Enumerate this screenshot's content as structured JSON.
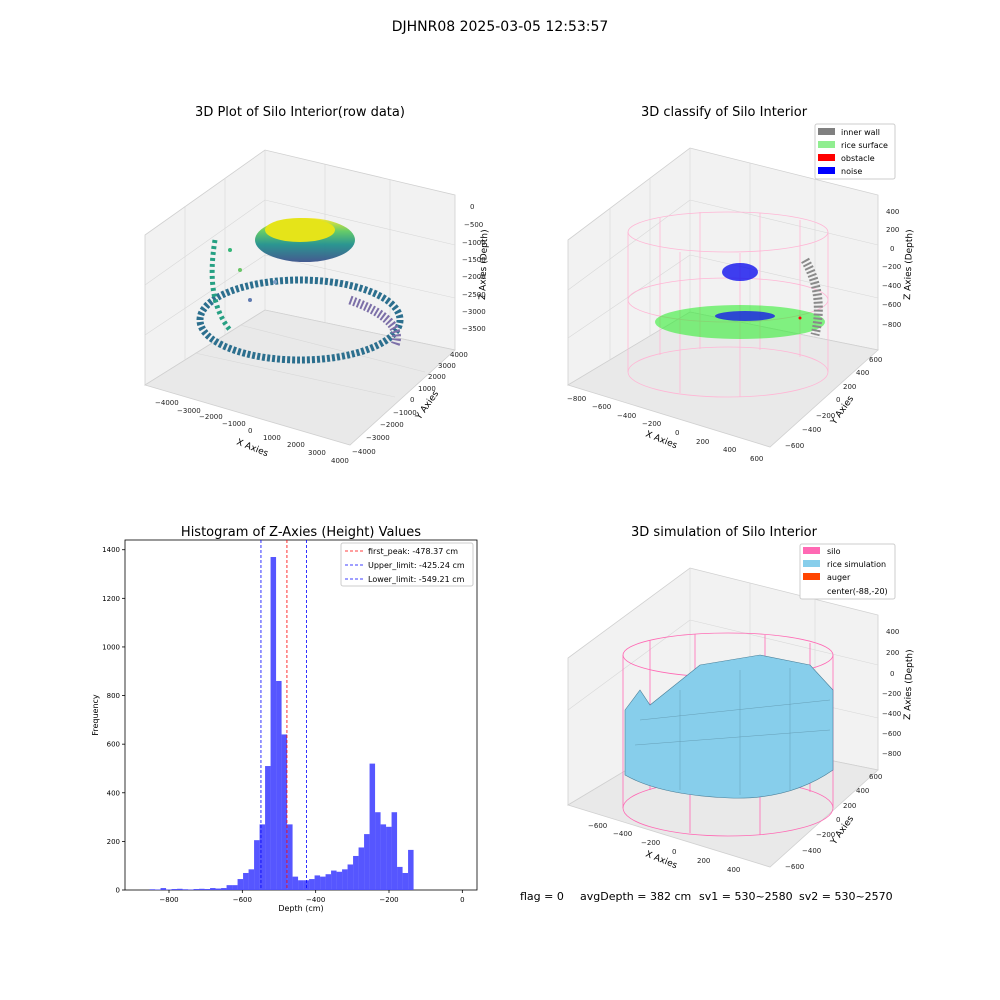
{
  "figure": {
    "suptitle": "DJHNR08 2025-03-05 12:53:57",
    "footer": {
      "flag": "flag = 0",
      "avg_depth": "avgDepth = 382 cm",
      "sv1": "sv1 = 530~2580",
      "sv2": "sv2 = 530~2570"
    }
  },
  "chart_data": [
    {
      "type": "scatter",
      "title": "3D Plot of Silo Interior(row data)",
      "xlabel": "X Axies",
      "ylabel": "Y Axies",
      "zlabel": "Z Axies (Depth)",
      "x_ticks": [
        "−4000",
        "−3000",
        "−2000",
        "−1000",
        "0",
        "1000",
        "2000",
        "3000",
        "4000"
      ],
      "y_ticks": [
        "−4000",
        "−3000",
        "−2000",
        "−1000",
        "0",
        "1000",
        "2000",
        "3000",
        "4000"
      ],
      "z_ticks": [
        "0",
        "−500",
        "−1000",
        "−1500",
        "−2000",
        "−2500",
        "−3000",
        "−3500"
      ],
      "colormap": "viridis"
    },
    {
      "type": "scatter",
      "title": "3D classify of Silo Interior",
      "xlabel": "X Axies",
      "ylabel": "Y Axies",
      "zlabel": "Z Axies (Depth)",
      "x_ticks": [
        "−800",
        "−600",
        "−400",
        "−200",
        "0",
        "200",
        "400",
        "600"
      ],
      "y_ticks": [
        "−600",
        "−400",
        "−200",
        "0",
        "200",
        "400",
        "600"
      ],
      "z_ticks": [
        "400",
        "200",
        "0",
        "−200",
        "−400",
        "−600",
        "−800"
      ],
      "legend_position": "top-right",
      "legend": [
        {
          "label": "inner wall",
          "color": "#808080"
        },
        {
          "label": "rice surface",
          "color": "#90ee90"
        },
        {
          "label": "obstacle",
          "color": "#ff0000"
        },
        {
          "label": "noise",
          "color": "#0000ff"
        }
      ]
    },
    {
      "type": "bar",
      "title": "Histogram of Z-Axies (Height) Values",
      "xlabel": "Depth (cm)",
      "ylabel": "Frequency",
      "xlim": [
        -920,
        40
      ],
      "ylim": [
        0,
        1440
      ],
      "bin_width": 15,
      "x_ticks": [
        -800,
        -600,
        -400,
        -200,
        0
      ],
      "x_tick_labels": [
        "−800",
        "−600",
        "−400",
        "−200",
        "0"
      ],
      "y_ticks": [
        0,
        200,
        400,
        600,
        800,
        1000,
        1200,
        1400
      ],
      "bar_color": "#4d4dff",
      "bins": [
        {
          "x": -853,
          "v": 3
        },
        {
          "x": -838,
          "v": 2
        },
        {
          "x": -823,
          "v": 8
        },
        {
          "x": -808,
          "v": 2
        },
        {
          "x": -793,
          "v": 4
        },
        {
          "x": -778,
          "v": 5
        },
        {
          "x": -763,
          "v": 3
        },
        {
          "x": -748,
          "v": 2
        },
        {
          "x": -733,
          "v": 4
        },
        {
          "x": -718,
          "v": 5
        },
        {
          "x": -703,
          "v": 4
        },
        {
          "x": -688,
          "v": 8
        },
        {
          "x": -673,
          "v": 6
        },
        {
          "x": -658,
          "v": 8
        },
        {
          "x": -643,
          "v": 20
        },
        {
          "x": -628,
          "v": 20
        },
        {
          "x": -613,
          "v": 45
        },
        {
          "x": -598,
          "v": 70
        },
        {
          "x": -583,
          "v": 85
        },
        {
          "x": -568,
          "v": 205
        },
        {
          "x": -553,
          "v": 270
        },
        {
          "x": -538,
          "v": 510
        },
        {
          "x": -523,
          "v": 1370
        },
        {
          "x": -508,
          "v": 860
        },
        {
          "x": -493,
          "v": 640
        },
        {
          "x": -478,
          "v": 270
        },
        {
          "x": -463,
          "v": 55
        },
        {
          "x": -448,
          "v": 40
        },
        {
          "x": -433,
          "v": 40
        },
        {
          "x": -418,
          "v": 45
        },
        {
          "x": -403,
          "v": 60
        },
        {
          "x": -388,
          "v": 55
        },
        {
          "x": -373,
          "v": 65
        },
        {
          "x": -358,
          "v": 80
        },
        {
          "x": -343,
          "v": 75
        },
        {
          "x": -328,
          "v": 85
        },
        {
          "x": -313,
          "v": 105
        },
        {
          "x": -298,
          "v": 140
        },
        {
          "x": -283,
          "v": 175
        },
        {
          "x": -268,
          "v": 230
        },
        {
          "x": -253,
          "v": 520
        },
        {
          "x": -238,
          "v": 320
        },
        {
          "x": -223,
          "v": 270
        },
        {
          "x": -208,
          "v": 260
        },
        {
          "x": -193,
          "v": 320
        },
        {
          "x": -178,
          "v": 95
        },
        {
          "x": -163,
          "v": 70
        },
        {
          "x": -148,
          "v": 165
        }
      ],
      "vlines": [
        {
          "x": -478.37,
          "label": "first_peak: -478.37 cm",
          "color": "#ff0000"
        },
        {
          "x": -425.24,
          "label": "Upper_limit: -425.24 cm",
          "color": "#0000ff"
        },
        {
          "x": -549.21,
          "label": "Lower_limit: -549.21 cm",
          "color": "#0000ff"
        }
      ],
      "legend_position": "top-right"
    },
    {
      "type": "area",
      "title": "3D simulation of Silo Interior",
      "xlabel": "X Axies",
      "ylabel": "Y Axies",
      "zlabel": "Z Axies (Depth)",
      "x_ticks": [
        "−600",
        "−400",
        "−200",
        "0",
        "200",
        "400"
      ],
      "y_ticks": [
        "−600",
        "−400",
        "−200",
        "0",
        "200",
        "400",
        "600"
      ],
      "z_ticks": [
        "400",
        "200",
        "0",
        "−200",
        "−400",
        "−600",
        "−800"
      ],
      "legend_position": "top-right",
      "legend": [
        {
          "label": "silo",
          "color": "#ff69b4"
        },
        {
          "label": "rice simulation",
          "color": "#87ceeb"
        },
        {
          "label": "auger",
          "color": "#ff4500"
        },
        {
          "label": "center(-88,-20)",
          "color": ""
        }
      ]
    }
  ]
}
